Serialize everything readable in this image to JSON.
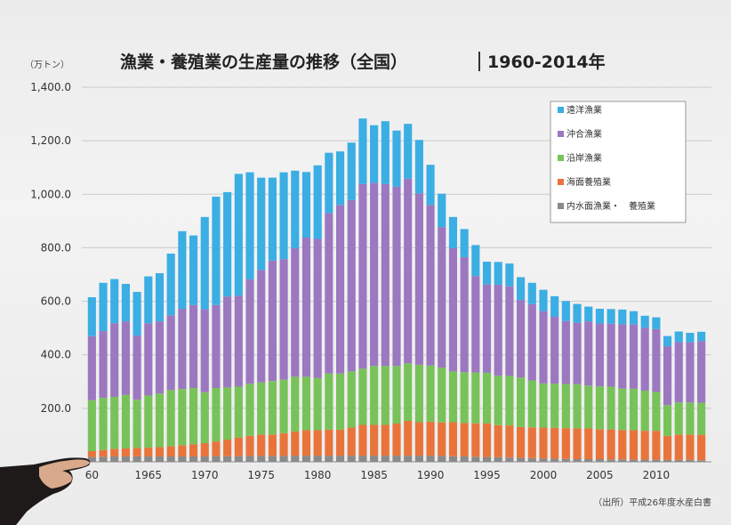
{
  "chart_data": {
    "type": "bar",
    "stacked": true,
    "title": "漁業・養殖業の生産量の推移（全国）",
    "subtitle": "1960-2014年",
    "ylabel": "（万トン）",
    "source": "（出所）平成26年度水産白書",
    "ylim": [
      0,
      1400
    ],
    "yticks": [
      200,
      400,
      600,
      800,
      1000,
      1200,
      1400
    ],
    "ytick_labels": [
      "200.0",
      "400.0",
      "600.0",
      "800.0",
      "1,000.0",
      "1,200.0",
      "1,400.0"
    ],
    "xtick_labels": [
      "60",
      "1965",
      "1970",
      "1975",
      "1980",
      "1985",
      "1990",
      "1995",
      "2000",
      "2005",
      "2010"
    ],
    "xtick_years": [
      1960,
      1965,
      1970,
      1975,
      1980,
      1985,
      1990,
      1995,
      2000,
      2005,
      2010
    ],
    "grid": true,
    "legend_position": "top-right",
    "categories": [
      1960,
      1961,
      1962,
      1963,
      1964,
      1965,
      1966,
      1967,
      1968,
      1969,
      1970,
      1971,
      1972,
      1973,
      1974,
      1975,
      1976,
      1977,
      1978,
      1979,
      1980,
      1981,
      1982,
      1983,
      1984,
      1985,
      1986,
      1987,
      1988,
      1989,
      1990,
      1991,
      1992,
      1993,
      1994,
      1995,
      1996,
      1997,
      1998,
      1999,
      2000,
      2001,
      2002,
      2003,
      2004,
      2005,
      2006,
      2007,
      2008,
      2009,
      2010,
      2011,
      2012,
      2013,
      2014
    ],
    "series": [
      {
        "name": "内水面漁業・　養殖業",
        "color": "#8a8a8a",
        "values": [
          18,
          19,
          20,
          20,
          20,
          20,
          20,
          20,
          20,
          20,
          20,
          21,
          21,
          21,
          22,
          22,
          22,
          22,
          23,
          23,
          23,
          23,
          23,
          23,
          23,
          23,
          23,
          23,
          23,
          23,
          22,
          22,
          21,
          20,
          19,
          18,
          17,
          16,
          15,
          14,
          13,
          12,
          11,
          10,
          10,
          10,
          9,
          9,
          8,
          8,
          8,
          7,
          7,
          7,
          6
        ]
      },
      {
        "name": "海面養殖業",
        "color": "#e8743c",
        "values": [
          22,
          25,
          28,
          30,
          32,
          33,
          35,
          38,
          42,
          46,
          50,
          55,
          62,
          70,
          75,
          80,
          80,
          85,
          90,
          95,
          95,
          97,
          97,
          105,
          115,
          115,
          115,
          120,
          130,
          125,
          128,
          125,
          127,
          125,
          125,
          125,
          120,
          120,
          115,
          115,
          115,
          115,
          115,
          115,
          115,
          112,
          112,
          110,
          110,
          108,
          108,
          90,
          95,
          95,
          95
        ]
      },
      {
        "name": "沿岸漁業",
        "color": "#78c25a",
        "values": [
          190,
          195,
          195,
          200,
          180,
          195,
          200,
          210,
          210,
          210,
          190,
          200,
          195,
          190,
          195,
          195,
          200,
          200,
          205,
          200,
          195,
          210,
          210,
          210,
          210,
          220,
          220,
          215,
          215,
          215,
          210,
          205,
          190,
          190,
          190,
          190,
          185,
          185,
          185,
          175,
          165,
          165,
          165,
          165,
          160,
          160,
          160,
          155,
          155,
          150,
          145,
          115,
          120,
          120,
          120
        ]
      },
      {
        "name": "沖合漁業",
        "color": "#9b78c0",
        "values": [
          240,
          250,
          275,
          275,
          240,
          270,
          270,
          280,
          300,
          310,
          310,
          310,
          340,
          340,
          390,
          420,
          450,
          450,
          480,
          520,
          520,
          600,
          630,
          640,
          690,
          685,
          680,
          670,
          690,
          640,
          600,
          525,
          460,
          430,
          360,
          330,
          340,
          335,
          290,
          285,
          270,
          250,
          235,
          230,
          240,
          235,
          235,
          240,
          240,
          235,
          235,
          220,
          225,
          225,
          230
        ]
      },
      {
        "name": "遠洋漁業",
        "color": "#3baee3",
        "values": [
          145,
          180,
          165,
          140,
          163,
          175,
          180,
          230,
          290,
          260,
          345,
          405,
          390,
          455,
          400,
          345,
          310,
          325,
          290,
          245,
          275,
          225,
          200,
          215,
          245,
          215,
          235,
          210,
          205,
          200,
          150,
          125,
          117,
          105,
          116,
          85,
          85,
          85,
          85,
          80,
          80,
          77,
          75,
          70,
          55,
          55,
          55,
          55,
          50,
          45,
          44,
          38,
          40,
          35,
          35
        ]
      }
    ]
  }
}
